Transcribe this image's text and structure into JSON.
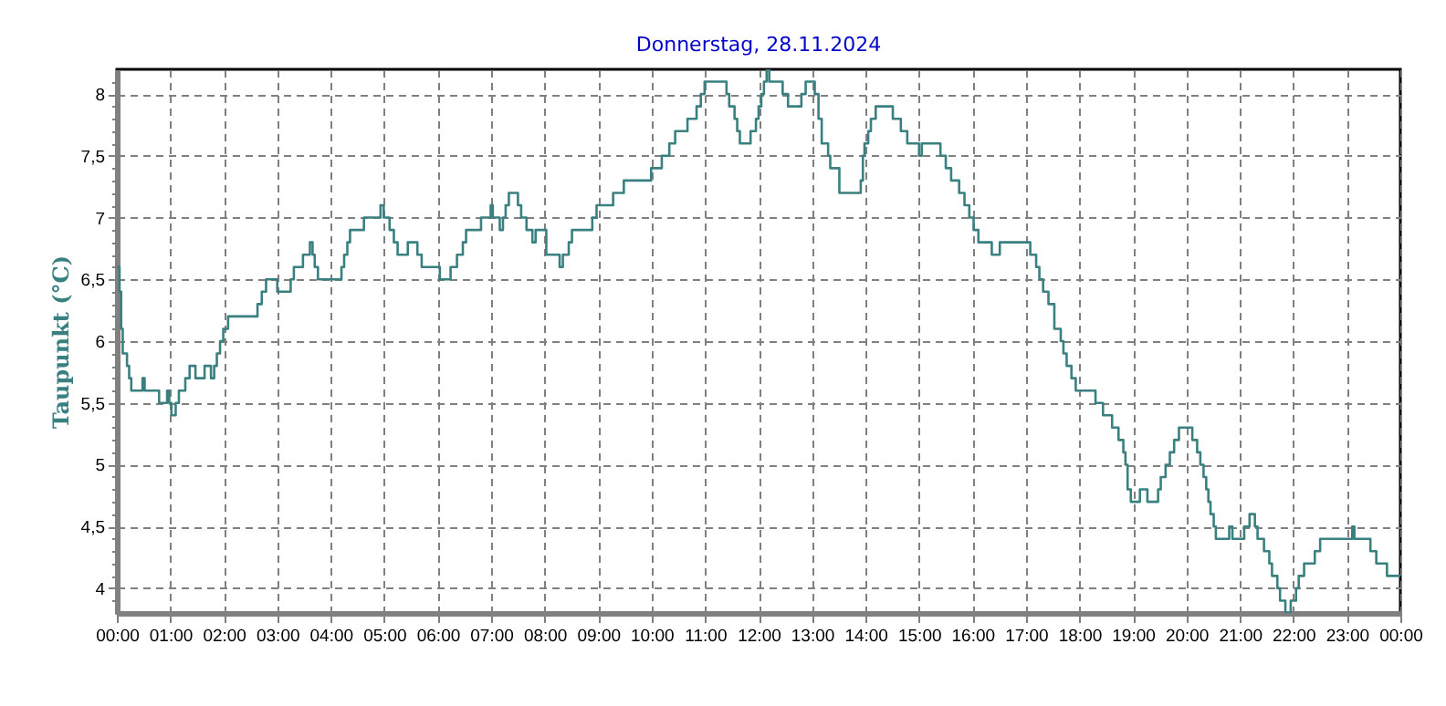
{
  "chart_data": {
    "type": "step",
    "title": "Donnerstag, 28.11.2024",
    "ylabel": "Taupunkt  (°C)",
    "xlim": [
      0,
      24
    ],
    "ylim": [
      3.8,
      8.2
    ],
    "grid": true,
    "marker": "none",
    "line_style": "solid",
    "xticks": [
      {
        "value": 0,
        "label": "00:00"
      },
      {
        "value": 1,
        "label": "01:00"
      },
      {
        "value": 2,
        "label": "02:00"
      },
      {
        "value": 3,
        "label": "03:00"
      },
      {
        "value": 4,
        "label": "04:00"
      },
      {
        "value": 5,
        "label": "05:00"
      },
      {
        "value": 6,
        "label": "06:00"
      },
      {
        "value": 7,
        "label": "07:00"
      },
      {
        "value": 8,
        "label": "08:00"
      },
      {
        "value": 9,
        "label": "09:00"
      },
      {
        "value": 10,
        "label": "10:00"
      },
      {
        "value": 11,
        "label": "11:00"
      },
      {
        "value": 12,
        "label": "12:00"
      },
      {
        "value": 13,
        "label": "13:00"
      },
      {
        "value": 14,
        "label": "14:00"
      },
      {
        "value": 15,
        "label": "15:00"
      },
      {
        "value": 16,
        "label": "16:00"
      },
      {
        "value": 17,
        "label": "17:00"
      },
      {
        "value": 18,
        "label": "18:00"
      },
      {
        "value": 19,
        "label": "19:00"
      },
      {
        "value": 20,
        "label": "20:00"
      },
      {
        "value": 21,
        "label": "21:00"
      },
      {
        "value": 22,
        "label": "22:00"
      },
      {
        "value": 23,
        "label": "23:00"
      },
      {
        "value": 24,
        "label": "00:00"
      }
    ],
    "yticks": [
      {
        "value": 3.9,
        "label": null
      },
      {
        "value": 4,
        "label": "4"
      },
      {
        "value": 4.1,
        "label": null
      },
      {
        "value": 4.2,
        "label": null
      },
      {
        "value": 4.3,
        "label": null
      },
      {
        "value": 4.4,
        "label": null
      },
      {
        "value": 4.5,
        "label": "4,5"
      },
      {
        "value": 4.6,
        "label": null
      },
      {
        "value": 4.7,
        "label": null
      },
      {
        "value": 4.8,
        "label": null
      },
      {
        "value": 4.9,
        "label": null
      },
      {
        "value": 5,
        "label": "5"
      },
      {
        "value": 5.1,
        "label": null
      },
      {
        "value": 5.2,
        "label": null
      },
      {
        "value": 5.3,
        "label": null
      },
      {
        "value": 5.4,
        "label": null
      },
      {
        "value": 5.5,
        "label": "5,5"
      },
      {
        "value": 5.6,
        "label": null
      },
      {
        "value": 5.7,
        "label": null
      },
      {
        "value": 5.8,
        "label": null
      },
      {
        "value": 5.9,
        "label": null
      },
      {
        "value": 6,
        "label": "6"
      },
      {
        "value": 6.1,
        "label": null
      },
      {
        "value": 6.2,
        "label": null
      },
      {
        "value": 6.3,
        "label": null
      },
      {
        "value": 6.4,
        "label": null
      },
      {
        "value": 6.5,
        "label": "6,5"
      },
      {
        "value": 6.6,
        "label": null
      },
      {
        "value": 6.7,
        "label": null
      },
      {
        "value": 6.8,
        "label": null
      },
      {
        "value": 6.9,
        "label": null
      },
      {
        "value": 7,
        "label": "7"
      },
      {
        "value": 7.1,
        "label": null
      },
      {
        "value": 7.2,
        "label": null
      },
      {
        "value": 7.3,
        "label": null
      },
      {
        "value": 7.4,
        "label": null
      },
      {
        "value": 7.5,
        "label": "7,5"
      },
      {
        "value": 7.6,
        "label": null
      },
      {
        "value": 7.7,
        "label": null
      },
      {
        "value": 7.8,
        "label": null
      },
      {
        "value": 7.9,
        "label": null
      },
      {
        "value": 8,
        "label": "8"
      },
      {
        "value": 8.1,
        "label": null
      }
    ],
    "series": [
      {
        "color": "#3a8080",
        "x": [
          0,
          0.05,
          0.08,
          0.11,
          0.19,
          0.23,
          0.27,
          0.48,
          0.52,
          0.79,
          0.94,
          0.98,
          1.02,
          1.1,
          1.16,
          1.28,
          1.36,
          1.47,
          1.64,
          1.76,
          1.82,
          1.87,
          1.93,
          1.99,
          2.08,
          2.63,
          2.71,
          2.79,
          3.0,
          3.25,
          3.31,
          3.48,
          3.61,
          3.66,
          3.7,
          3.76,
          4.2,
          4.25,
          4.31,
          4.36,
          4.62,
          4.93,
          4.99,
          5.1,
          5.18,
          5.25,
          5.44,
          5.62,
          5.7,
          6.04,
          6.24,
          6.36,
          6.47,
          6.53,
          6.81,
          6.99,
          7.03,
          7.16,
          7.22,
          7.27,
          7.33,
          7.5,
          7.56,
          7.66,
          7.77,
          7.83,
          8.03,
          8.28,
          8.34,
          8.45,
          8.51,
          8.89,
          8.97,
          9.28,
          9.48,
          9.99,
          10.19,
          10.33,
          10.44,
          10.67,
          10.84,
          10.92,
          10.99,
          11.4,
          11.45,
          11.55,
          11.6,
          11.65,
          11.85,
          11.95,
          12.0,
          12.05,
          12.1,
          12.15,
          12.2,
          12.45,
          12.55,
          12.8,
          12.88,
          13.05,
          13.12,
          13.18,
          13.3,
          13.34,
          13.51,
          13.91,
          13.95,
          13.98,
          14.05,
          14.1,
          14.19,
          14.51,
          14.66,
          14.78,
          15.0,
          15.05,
          15.4,
          15.5,
          15.6,
          15.75,
          15.85,
          15.94,
          16.02,
          16.11,
          16.36,
          16.51,
          17.08,
          17.19,
          17.25,
          17.32,
          17.42,
          17.53,
          17.65,
          17.7,
          17.76,
          17.85,
          17.93,
          18.3,
          18.44,
          18.61,
          18.73,
          18.82,
          18.86,
          18.9,
          18.96,
          19.13,
          19.27,
          19.47,
          19.52,
          19.61,
          19.69,
          19.77,
          19.86,
          20.11,
          20.2,
          20.26,
          20.32,
          20.37,
          20.41,
          20.45,
          20.51,
          20.55,
          20.8,
          20.86,
          21.08,
          21.18,
          21.28,
          21.33,
          21.45,
          21.55,
          21.6,
          21.7,
          21.75,
          21.85,
          21.95,
          22.05,
          22.1,
          22.2,
          22.4,
          22.5,
          23.1,
          23.14,
          23.44,
          23.55,
          23.75,
          24.0
        ],
        "values": [
          6.6,
          6.4,
          6.1,
          5.9,
          5.8,
          5.7,
          5.6,
          5.7,
          5.6,
          5.5,
          5.6,
          5.5,
          5.4,
          5.5,
          5.6,
          5.7,
          5.8,
          5.7,
          5.8,
          5.7,
          5.8,
          5.9,
          6.0,
          6.1,
          6.2,
          6.3,
          6.4,
          6.5,
          6.4,
          6.5,
          6.6,
          6.7,
          6.8,
          6.7,
          6.6,
          6.5,
          6.6,
          6.7,
          6.8,
          6.9,
          7.0,
          7.1,
          7.0,
          6.9,
          6.8,
          6.7,
          6.8,
          6.7,
          6.6,
          6.5,
          6.6,
          6.7,
          6.8,
          6.9,
          7.0,
          7.1,
          7.0,
          6.9,
          7.0,
          7.1,
          7.2,
          7.1,
          7.0,
          6.9,
          6.8,
          6.9,
          6.7,
          6.6,
          6.7,
          6.8,
          6.9,
          7.0,
          7.1,
          7.2,
          7.3,
          7.4,
          7.5,
          7.6,
          7.7,
          7.8,
          7.9,
          8.0,
          8.1,
          8.0,
          7.9,
          7.8,
          7.7,
          7.6,
          7.7,
          7.8,
          7.9,
          8.0,
          8.1,
          8.2,
          8.1,
          8.0,
          7.9,
          8.0,
          8.1,
          8.0,
          7.8,
          7.6,
          7.5,
          7.4,
          7.2,
          7.3,
          7.5,
          7.6,
          7.7,
          7.8,
          7.9,
          7.8,
          7.7,
          7.6,
          7.5,
          7.6,
          7.5,
          7.4,
          7.3,
          7.2,
          7.1,
          7.0,
          6.9,
          6.8,
          6.7,
          6.8,
          6.7,
          6.6,
          6.5,
          6.4,
          6.3,
          6.1,
          6.0,
          5.9,
          5.8,
          5.7,
          5.6,
          5.5,
          5.4,
          5.3,
          5.2,
          5.1,
          5.0,
          4.8,
          4.7,
          4.8,
          4.7,
          4.8,
          4.9,
          5.0,
          5.1,
          5.2,
          5.3,
          5.2,
          5.1,
          5.0,
          4.9,
          4.8,
          4.7,
          4.6,
          4.5,
          4.4,
          4.5,
          4.4,
          4.5,
          4.6,
          4.5,
          4.4,
          4.3,
          4.2,
          4.1,
          4.0,
          3.9,
          3.8,
          3.9,
          4.0,
          4.1,
          4.2,
          4.3,
          4.4,
          4.5,
          4.4,
          4.3,
          4.2,
          4.1,
          4.1
        ]
      }
    ]
  }
}
